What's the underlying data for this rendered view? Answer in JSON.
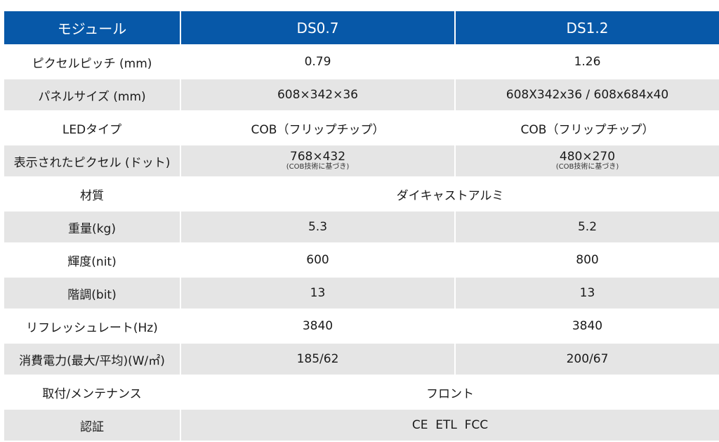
{
  "header": {
    "label_col": "モジュール",
    "col1": "DS0.7",
    "col2": "DS1.2"
  },
  "rows": [
    {
      "label": "ピクセルピッチ (mm)",
      "v1": "0.79",
      "v2": "1.26"
    },
    {
      "label": "パネルサイズ (mm)",
      "v1": "608×342×36",
      "v2": "608X342x36 / 608x684x40"
    },
    {
      "label": "LEDタイプ",
      "v1": "COB（フリップチップ）",
      "v2": "COB（フリップチップ）"
    },
    {
      "label": "表示されたピクセル (ドット)",
      "v1": "768×432",
      "v1_note": "(COB技術に基づき)",
      "v2": "480×270",
      "v2_note": "(COB技術に基づき)"
    },
    {
      "label": "材質",
      "merged": "ダイキャストアルミ"
    },
    {
      "label": "重量(kg)",
      "v1": "5.3",
      "v2": "5.2"
    },
    {
      "label": "輝度(nit)",
      "v1": "600",
      "v2": "800"
    },
    {
      "label": "階調(bit)",
      "v1": "13",
      "v2": "13"
    },
    {
      "label": "リフレッシュレート(Hz)",
      "v1": "3840",
      "v2": "3840"
    },
    {
      "label": "消費電力(最大/平均)(W/㎡)",
      "v1": "185/62",
      "v2": "200/67"
    },
    {
      "label": "取付/メンテナンス",
      "merged": "フロント"
    },
    {
      "label": "認証",
      "merged": "CE  ETL  FCC"
    }
  ]
}
